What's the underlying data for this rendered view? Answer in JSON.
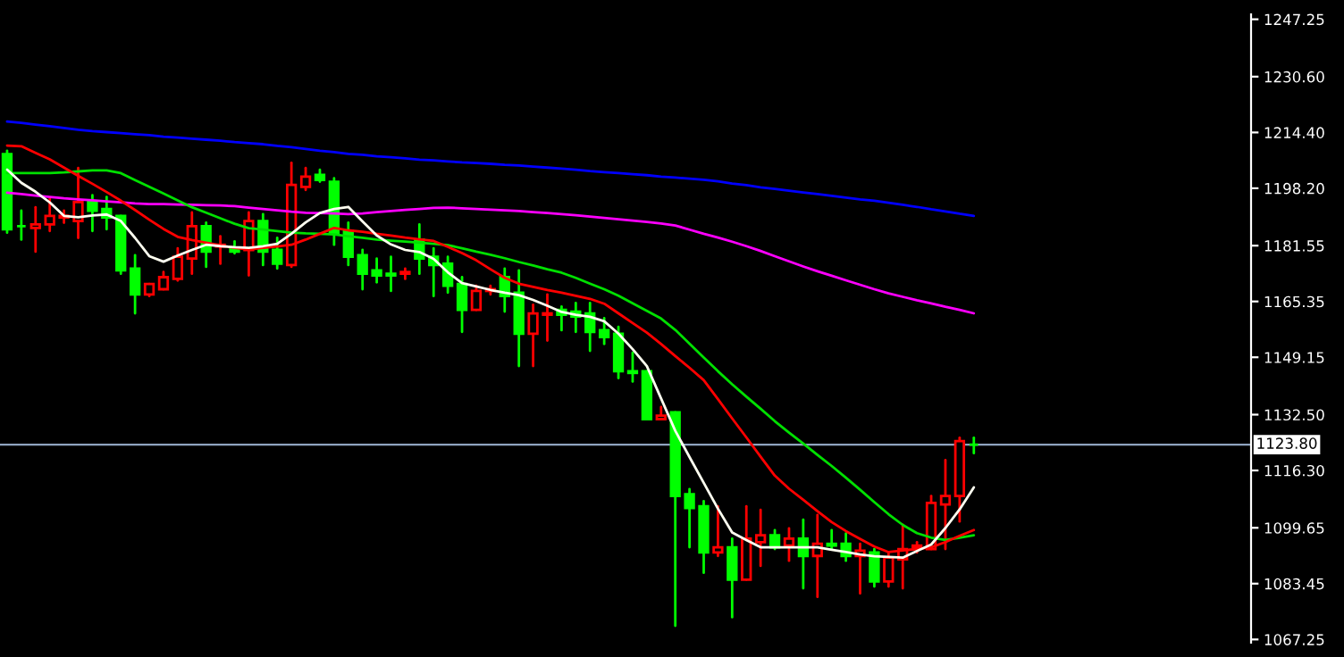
{
  "chart_data": {
    "type": "candlestick",
    "categories": [
      null,
      null,
      null,
      null,
      null,
      null,
      null,
      null,
      null,
      null,
      null,
      null,
      null,
      null,
      null,
      null,
      null,
      null,
      null,
      null,
      null,
      null,
      null,
      null,
      null,
      null,
      null,
      null,
      null,
      null,
      null,
      null,
      null,
      null,
      null,
      null,
      null,
      null,
      null,
      null,
      null,
      null,
      null,
      null,
      null,
      null,
      null,
      null,
      null,
      null,
      null,
      null,
      null,
      null,
      null,
      null,
      null,
      null,
      null,
      null,
      null,
      null,
      null,
      null,
      null,
      null,
      null,
      null,
      null,
      null,
      null,
      null,
      null,
      null,
      null,
      null,
      null,
      null,
      null,
      null,
      null,
      null,
      null,
      null,
      null,
      null,
      null,
      null
    ],
    "ohlc": [
      [
        1208.1,
        1209.1,
        1185.3,
        1186.3
      ],
      [
        1187.2,
        1191.7,
        1183.3,
        1187.2
      ],
      [
        1186.7,
        1192.7,
        1179.8,
        1187.7
      ],
      [
        1187.7,
        1195.2,
        1185.8,
        1190.2
      ],
      [
        1189.7,
        1191.7,
        1188.2,
        1190.2
      ],
      [
        1188.7,
        1204.1,
        1183.8,
        1194.2
      ],
      [
        1194.2,
        1196.2,
        1185.8,
        1191.7
      ],
      [
        1192.2,
        1195.7,
        1186.3,
        1189.7
      ],
      [
        1190.2,
        1190.2,
        1173.4,
        1174.4
      ],
      [
        1174.9,
        1178.8,
        1161.9,
        1167.4
      ],
      [
        1167.4,
        1170.4,
        1166.9,
        1170.4
      ],
      [
        1168.9,
        1173.9,
        1168.9,
        1172.4
      ],
      [
        1171.9,
        1180.8,
        1171.4,
        1178.3
      ],
      [
        1177.8,
        1191.2,
        1173.4,
        1187.2
      ],
      [
        1187.2,
        1188.2,
        1175.4,
        1179.8
      ],
      [
        1181.3,
        1184.3,
        1176.3,
        1181.8
      ],
      [
        1180.8,
        1182.8,
        1179.3,
        1179.8
      ],
      [
        1180.3,
        1191.2,
        1172.9,
        1188.7
      ],
      [
        1188.7,
        1190.7,
        1175.9,
        1179.8
      ],
      [
        1180.3,
        1183.8,
        1174.9,
        1176.3
      ],
      [
        1175.9,
        1205.6,
        1175.4,
        1199.2
      ],
      [
        1198.6,
        1204.1,
        1197.7,
        1201.6
      ],
      [
        1202.1,
        1203.6,
        1200.1,
        1200.6
      ],
      [
        1200.1,
        1201.1,
        1181.8,
        1185.3
      ],
      [
        1185.8,
        1188.2,
        1175.9,
        1178.3
      ],
      [
        1178.8,
        1180.3,
        1168.9,
        1173.4
      ],
      [
        1174.4,
        1177.8,
        1170.9,
        1172.9
      ],
      [
        1173.4,
        1178.3,
        1168.4,
        1172.9
      ],
      [
        1173.4,
        1174.9,
        1171.9,
        1173.9
      ],
      [
        1183.3,
        1187.7,
        1173.4,
        1177.8
      ],
      [
        1178.3,
        1180.8,
        1166.9,
        1175.9
      ],
      [
        1176.3,
        1178.3,
        1167.9,
        1169.9
      ],
      [
        1170.4,
        1172.4,
        1156.5,
        1162.9
      ],
      [
        1162.9,
        1169.9,
        1162.9,
        1168.4
      ],
      [
        1168.4,
        1169.9,
        1167.4,
        1168.9
      ],
      [
        1172.4,
        1174.9,
        1162.4,
        1166.9
      ],
      [
        1167.9,
        1174.4,
        1146.6,
        1156.0
      ],
      [
        1156.0,
        1164.4,
        1146.6,
        1161.9
      ],
      [
        1161.5,
        1167.4,
        1154.0,
        1161.9
      ],
      [
        1162.9,
        1163.9,
        1157.0,
        1161.5
      ],
      [
        1162.4,
        1164.9,
        1156.5,
        1161.0
      ],
      [
        1161.9,
        1164.9,
        1151.0,
        1156.5
      ],
      [
        1157.0,
        1160.5,
        1153.0,
        1155.0
      ],
      [
        1156.0,
        1158.0,
        1143.1,
        1145.1
      ],
      [
        1145.1,
        1150.5,
        1142.1,
        1144.6
      ],
      [
        1145.1,
        1145.1,
        1131.2,
        1131.2
      ],
      [
        1131.2,
        1134.7,
        1131.2,
        1132.2
      ],
      [
        1133.2,
        1133.2,
        1071.2,
        1108.9
      ],
      [
        1109.4,
        1110.9,
        1094.0,
        1105.4
      ],
      [
        1105.9,
        1107.4,
        1086.6,
        1092.5
      ],
      [
        1092.5,
        1105.9,
        1091.5,
        1094.0
      ],
      [
        1094.0,
        1096.5,
        1073.7,
        1084.6
      ],
      [
        1084.6,
        1105.9,
        1084.6,
        1096.5
      ],
      [
        1095.5,
        1104.9,
        1088.6,
        1097.5
      ],
      [
        1097.5,
        1099.0,
        1093.5,
        1094.0
      ],
      [
        1094.5,
        1099.5,
        1090.1,
        1096.5
      ],
      [
        1096.5,
        1102.0,
        1082.1,
        1091.5
      ],
      [
        1091.5,
        1103.4,
        1079.6,
        1095.0
      ],
      [
        1095.0,
        1099.0,
        1093.5,
        1094.5
      ],
      [
        1095.0,
        1098.0,
        1090.1,
        1091.5
      ],
      [
        1091.5,
        1095.0,
        1080.6,
        1093.0
      ],
      [
        1092.5,
        1093.5,
        1082.6,
        1084.1
      ],
      [
        1084.1,
        1092.5,
        1082.6,
        1091.0
      ],
      [
        1090.5,
        1100.5,
        1082.1,
        1093.5
      ],
      [
        1094.0,
        1095.5,
        1092.5,
        1094.5
      ],
      [
        1093.5,
        1108.9,
        1093.5,
        1106.9
      ],
      [
        1106.4,
        1119.3,
        1093.5,
        1108.9
      ],
      [
        1108.9,
        1125.8,
        1101.5,
        1124.8
      ],
      [
        1123.8,
        1125.8,
        1121.3,
        1123.8
      ],
      null,
      null,
      null,
      null,
      null,
      null,
      null,
      null,
      null,
      null,
      null,
      null,
      null,
      null,
      null,
      null,
      null,
      null,
      null
    ],
    "colors": [
      "#00ff00",
      "#00ff00",
      "#ff0000",
      "#ff0000",
      "#ff0000",
      "#ff0000",
      "#00ff00",
      "#00ff00",
      "#00ff00",
      "#00ff00",
      "#ff0000",
      "#ff0000",
      "#ff0000",
      "#ff0000",
      "#00ff00",
      "#ff0000",
      "#00ff00",
      "#ff0000",
      "#00ff00",
      "#00ff00",
      "#ff0000",
      "#ff0000",
      "#00ff00",
      "#00ff00",
      "#00ff00",
      "#00ff00",
      "#00ff00",
      "#00ff00",
      "#ff0000",
      "#00ff00",
      "#00ff00",
      "#00ff00",
      "#00ff00",
      "#ff0000",
      "#ff0000",
      "#00ff00",
      "#00ff00",
      "#ff0000",
      "#ff0000",
      "#00ff00",
      "#00ff00",
      "#00ff00",
      "#00ff00",
      "#00ff00",
      "#00ff00",
      "#00ff00",
      "#ff0000",
      "#00ff00",
      "#00ff00",
      "#00ff00",
      "#ff0000",
      "#00ff00",
      "#ff0000",
      "#ff0000",
      "#00ff00",
      "#ff0000",
      "#00ff00",
      "#ff0000",
      "#00ff00",
      "#00ff00",
      "#ff0000",
      "#00ff00",
      "#ff0000",
      "#ff0000",
      "#ff0000",
      "#ff0000",
      "#ff0000",
      "#ff0000",
      "#00ff00",
      null,
      null,
      null,
      null,
      null,
      null,
      null,
      null,
      null,
      null,
      null,
      null,
      null,
      null,
      null,
      null,
      null,
      null,
      null
    ],
    "series": [
      {
        "type": "line",
        "color": "#0000ff",
        "values": [
          1217.6,
          1217.2,
          1216.7,
          1216.2,
          1215.7,
          1215.2,
          1214.8,
          1214.5,
          1214.2,
          1213.9,
          1213.6,
          1213.2,
          1212.9,
          1212.6,
          1212.3,
          1212.0,
          1211.6,
          1211.3,
          1211.0,
          1210.5,
          1210.1,
          1209.6,
          1209.1,
          1208.7,
          1208.2,
          1207.9,
          1207.5,
          1207.2,
          1206.9,
          1206.5,
          1206.3,
          1206.0,
          1205.7,
          1205.5,
          1205.3,
          1205.0,
          1204.8,
          1204.5,
          1204.2,
          1203.9,
          1203.6,
          1203.2,
          1202.9,
          1202.6,
          1202.3,
          1202.0,
          1201.6,
          1201.3,
          1201.0,
          1200.7,
          1200.2,
          1199.6,
          1199.1,
          1198.5,
          1198.0,
          1197.5,
          1197.0,
          1196.5,
          1196.0,
          1195.5,
          1195.0,
          1194.6,
          1194.0,
          1193.4,
          1192.8,
          1192.1,
          1191.5,
          1190.8,
          1190.2,
          null,
          null,
          null,
          null,
          null,
          null,
          null,
          null,
          null,
          null,
          null,
          null,
          null,
          null,
          null,
          null,
          null,
          null,
          null
        ]
      },
      {
        "type": "line",
        "color": "#ff00ff",
        "values": [
          1196.9,
          1196.5,
          1196.1,
          1195.7,
          1195.3,
          1195.0,
          1194.7,
          1194.4,
          1194.1,
          1193.8,
          1193.6,
          1193.6,
          1193.5,
          1193.4,
          1193.3,
          1193.2,
          1193.0,
          1192.6,
          1192.2,
          1191.8,
          1191.4,
          1191.1,
          1191.0,
          1190.9,
          1190.7,
          1190.9,
          1191.3,
          1191.6,
          1191.9,
          1192.2,
          1192.5,
          1192.6,
          1192.4,
          1192.2,
          1192.0,
          1191.8,
          1191.6,
          1191.3,
          1191.0,
          1190.7,
          1190.4,
          1190.0,
          1189.6,
          1189.2,
          1188.8,
          1188.4,
          1188.0,
          1187.4,
          1186.2,
          1185.0,
          1183.9,
          1182.7,
          1181.4,
          1180.0,
          1178.5,
          1177.0,
          1175.5,
          1174.1,
          1172.8,
          1171.5,
          1170.2,
          1168.9,
          1167.7,
          1166.7,
          1165.7,
          1164.8,
          1163.8,
          1162.9,
          1161.9,
          null,
          null,
          null,
          null,
          null,
          null,
          null,
          null,
          null,
          null,
          null,
          null,
          null,
          null,
          null,
          null,
          null,
          null,
          null
        ]
      },
      {
        "type": "line",
        "color": "#00e000",
        "values": [
          1202.6,
          1202.6,
          1202.6,
          1202.6,
          1202.8,
          1203.1,
          1203.4,
          1203.4,
          1202.6,
          1200.6,
          1198.6,
          1196.7,
          1194.7,
          1192.7,
          1191.1,
          1189.5,
          1187.9,
          1186.6,
          1186.2,
          1185.8,
          1185.3,
          1185.1,
          1185.0,
          1184.8,
          1184.3,
          1183.8,
          1183.3,
          1183.0,
          1182.7,
          1182.4,
          1182.1,
          1181.7,
          1180.8,
          1179.8,
          1178.9,
          1177.9,
          1176.8,
          1175.8,
          1174.7,
          1173.7,
          1172.2,
          1170.5,
          1168.9,
          1167.0,
          1164.8,
          1162.6,
          1160.4,
          1157.1,
          1153.1,
          1149.1,
          1145.1,
          1141.3,
          1137.7,
          1134.2,
          1130.6,
          1127.3,
          1124.1,
          1120.8,
          1117.6,
          1114.2,
          1110.7,
          1107.1,
          1103.6,
          1100.5,
          1098.1,
          1096.8,
          1096.1,
          1096.8,
          1097.5,
          null,
          null,
          null,
          null,
          null,
          null,
          null,
          null,
          null,
          null,
          null,
          null,
          null,
          null,
          null,
          null,
          null,
          null,
          null
        ]
      },
      {
        "type": "line",
        "color": "#ff0000",
        "values": [
          1210.6,
          1210.4,
          1208.5,
          1206.6,
          1204.2,
          1201.8,
          1199.5,
          1197.1,
          1194.6,
          1191.9,
          1189.1,
          1186.4,
          1184.1,
          1183.2,
          1182.4,
          1181.6,
          1180.9,
          1180.4,
          1180.9,
          1181.3,
          1181.8,
          1183.3,
          1185.0,
          1186.7,
          1186.0,
          1185.6,
          1185.0,
          1184.5,
          1183.9,
          1183.4,
          1182.9,
          1181.2,
          1179.4,
          1177.3,
          1174.7,
          1172.2,
          1170.5,
          1169.6,
          1168.7,
          1167.9,
          1167.0,
          1166.1,
          1164.7,
          1161.9,
          1159.1,
          1156.3,
          1153.0,
          1149.5,
          1146.1,
          1142.5,
          1137.0,
          1131.4,
          1125.9,
          1120.3,
          1114.8,
          1111.0,
          1107.8,
          1104.5,
          1101.3,
          1098.7,
          1096.4,
          1094.2,
          1092.6,
          1093.1,
          1093.5,
          1094.0,
          1095.5,
          1097.3,
          1099.0,
          null,
          null,
          null,
          null,
          null,
          null,
          null,
          null,
          null,
          null,
          null,
          null,
          null,
          null,
          null,
          null,
          null,
          null,
          null
        ]
      },
      {
        "type": "line",
        "color": "#fffff0",
        "values": [
          1203.6,
          1199.8,
          1197.2,
          1194.1,
          1190.2,
          1189.8,
          1190.3,
          1190.6,
          1188.7,
          1183.8,
          1178.5,
          1176.9,
          1178.7,
          1180.3,
          1181.8,
          1181.4,
          1181.1,
          1180.9,
          1181.4,
          1182.1,
          1185.0,
          1188.3,
          1191.0,
          1192.2,
          1192.8,
          1188.6,
          1184.5,
          1181.9,
          1180.3,
          1179.7,
          1177.7,
          1173.8,
          1170.7,
          1169.7,
          1168.7,
          1167.9,
          1167.2,
          1165.8,
          1164.1,
          1162.3,
          1161.5,
          1160.9,
          1159.6,
          1156.0,
          1151.5,
          1146.6,
          1137.2,
          1127.8,
          1120.2,
          1112.7,
          1105.2,
          1098.3,
          1096.1,
          1094.0,
          1094.0,
          1094.0,
          1094.0,
          1094.0,
          1093.3,
          1092.6,
          1091.9,
          1091.4,
          1091.2,
          1091.0,
          1092.9,
          1094.8,
          1099.6,
          1105.0,
          1111.4,
          null,
          null,
          null,
          null,
          null,
          null,
          null,
          null,
          null,
          null,
          null,
          null,
          null,
          null,
          null,
          null,
          null,
          null,
          null
        ]
      }
    ],
    "ylim": [
      1066.3,
      1248.7
    ],
    "yticks": [
      {
        "value": 1247.25,
        "label": "1247.25"
      },
      {
        "value": 1230.6,
        "label": "1230.60"
      },
      {
        "value": 1214.4,
        "label": "1214.40"
      },
      {
        "value": 1198.2,
        "label": "1198.20"
      },
      {
        "value": 1181.55,
        "label": "1181.55"
      },
      {
        "value": 1165.35,
        "label": "1165.35"
      },
      {
        "value": 1149.15,
        "label": "1149.15"
      },
      {
        "value": 1132.5,
        "label": "1132.50"
      },
      {
        "value": 1116.3,
        "label": "1116.30"
      },
      {
        "value": 1099.65,
        "label": "1099.65"
      },
      {
        "value": 1083.45,
        "label": "1083.45"
      },
      {
        "value": 1067.25,
        "label": "1067.25"
      }
    ],
    "ref_lines": [
      {
        "axis": "y",
        "value": 1123.8,
        "label": "1123.80",
        "color": "#8fa3bf"
      }
    ],
    "tick_labels": "y"
  }
}
